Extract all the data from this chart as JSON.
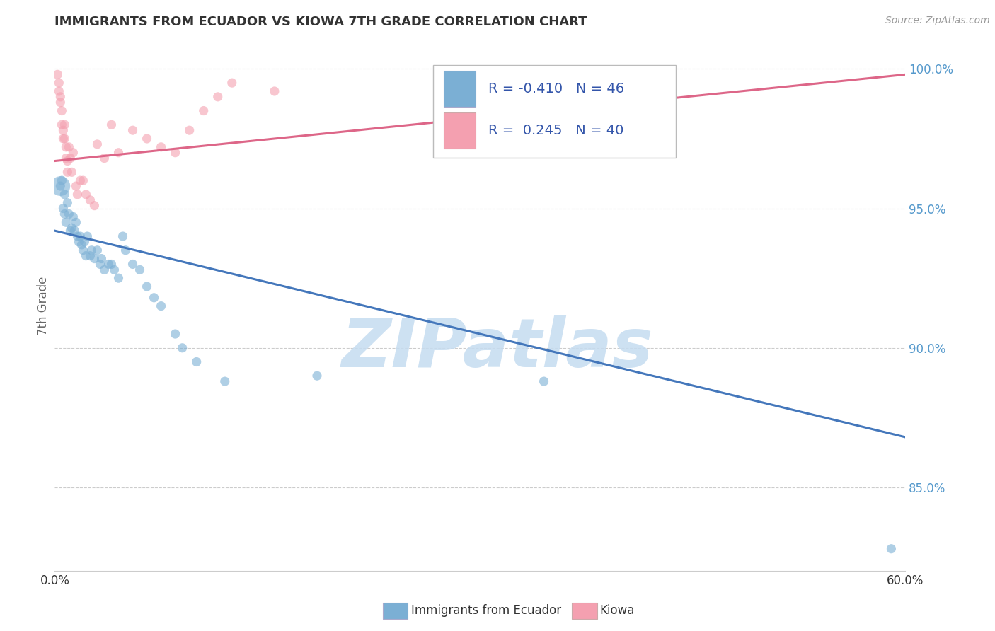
{
  "title": "IMMIGRANTS FROM ECUADOR VS KIOWA 7TH GRADE CORRELATION CHART",
  "source": "Source: ZipAtlas.com",
  "ylabel_left": "7th Grade",
  "xlim": [
    0.0,
    0.6
  ],
  "ylim": [
    0.82,
    1.01
  ],
  "yticks_right": [
    0.85,
    0.9,
    0.95,
    1.0
  ],
  "ytick_labels_right": [
    "85.0%",
    "90.0%",
    "95.0%",
    "100.0%"
  ],
  "blue_r": -0.41,
  "blue_n": 46,
  "pink_r": 0.245,
  "pink_n": 40,
  "blue_color": "#7BAFD4",
  "pink_color": "#F4A0B0",
  "blue_line_color": "#4477BB",
  "pink_line_color": "#DD6688",
  "watermark": "ZIPatlas",
  "watermark_color": "#C5DCF0",
  "background_color": "#FFFFFF",
  "grid_color": "#CCCCCC",
  "title_color": "#333333",
  "right_axis_color": "#5599CC",
  "blue_scatter_x": [
    0.004,
    0.005,
    0.006,
    0.007,
    0.007,
    0.008,
    0.009,
    0.01,
    0.011,
    0.012,
    0.013,
    0.014,
    0.015,
    0.016,
    0.017,
    0.018,
    0.019,
    0.02,
    0.021,
    0.022,
    0.023,
    0.025,
    0.026,
    0.028,
    0.03,
    0.032,
    0.033,
    0.035,
    0.038,
    0.04,
    0.042,
    0.045,
    0.048,
    0.05,
    0.055,
    0.06,
    0.065,
    0.07,
    0.075,
    0.085,
    0.09,
    0.1,
    0.12,
    0.185,
    0.345,
    0.59
  ],
  "blue_scatter_y": [
    0.958,
    0.96,
    0.95,
    0.948,
    0.955,
    0.945,
    0.952,
    0.948,
    0.942,
    0.943,
    0.947,
    0.942,
    0.945,
    0.94,
    0.938,
    0.94,
    0.937,
    0.935,
    0.938,
    0.933,
    0.94,
    0.933,
    0.935,
    0.932,
    0.935,
    0.93,
    0.932,
    0.928,
    0.93,
    0.93,
    0.928,
    0.925,
    0.94,
    0.935,
    0.93,
    0.928,
    0.922,
    0.918,
    0.915,
    0.905,
    0.9,
    0.895,
    0.888,
    0.89,
    0.888,
    0.828
  ],
  "pink_scatter_x": [
    0.002,
    0.003,
    0.003,
    0.004,
    0.004,
    0.005,
    0.005,
    0.006,
    0.006,
    0.007,
    0.007,
    0.008,
    0.008,
    0.009,
    0.009,
    0.01,
    0.011,
    0.012,
    0.013,
    0.015,
    0.016,
    0.018,
    0.02,
    0.022,
    0.025,
    0.028,
    0.03,
    0.035,
    0.04,
    0.045,
    0.055,
    0.065,
    0.075,
    0.085,
    0.095,
    0.105,
    0.115,
    0.125,
    0.155,
    0.35
  ],
  "pink_scatter_y": [
    0.998,
    0.995,
    0.992,
    0.99,
    0.988,
    0.985,
    0.98,
    0.978,
    0.975,
    0.975,
    0.98,
    0.972,
    0.968,
    0.967,
    0.963,
    0.972,
    0.968,
    0.963,
    0.97,
    0.958,
    0.955,
    0.96,
    0.96,
    0.955,
    0.953,
    0.951,
    0.973,
    0.968,
    0.98,
    0.97,
    0.978,
    0.975,
    0.972,
    0.97,
    0.978,
    0.985,
    0.99,
    0.995,
    0.992,
    0.993
  ],
  "blue_large_x": [
    0.004
  ],
  "blue_large_y": [
    0.958
  ],
  "blue_large_size": 400,
  "blue_trendline_x": [
    0.0,
    0.6
  ],
  "blue_trendline_y": [
    0.942,
    0.868
  ],
  "pink_trendline_x": [
    0.0,
    0.6
  ],
  "pink_trendline_y": [
    0.967,
    0.998
  ]
}
